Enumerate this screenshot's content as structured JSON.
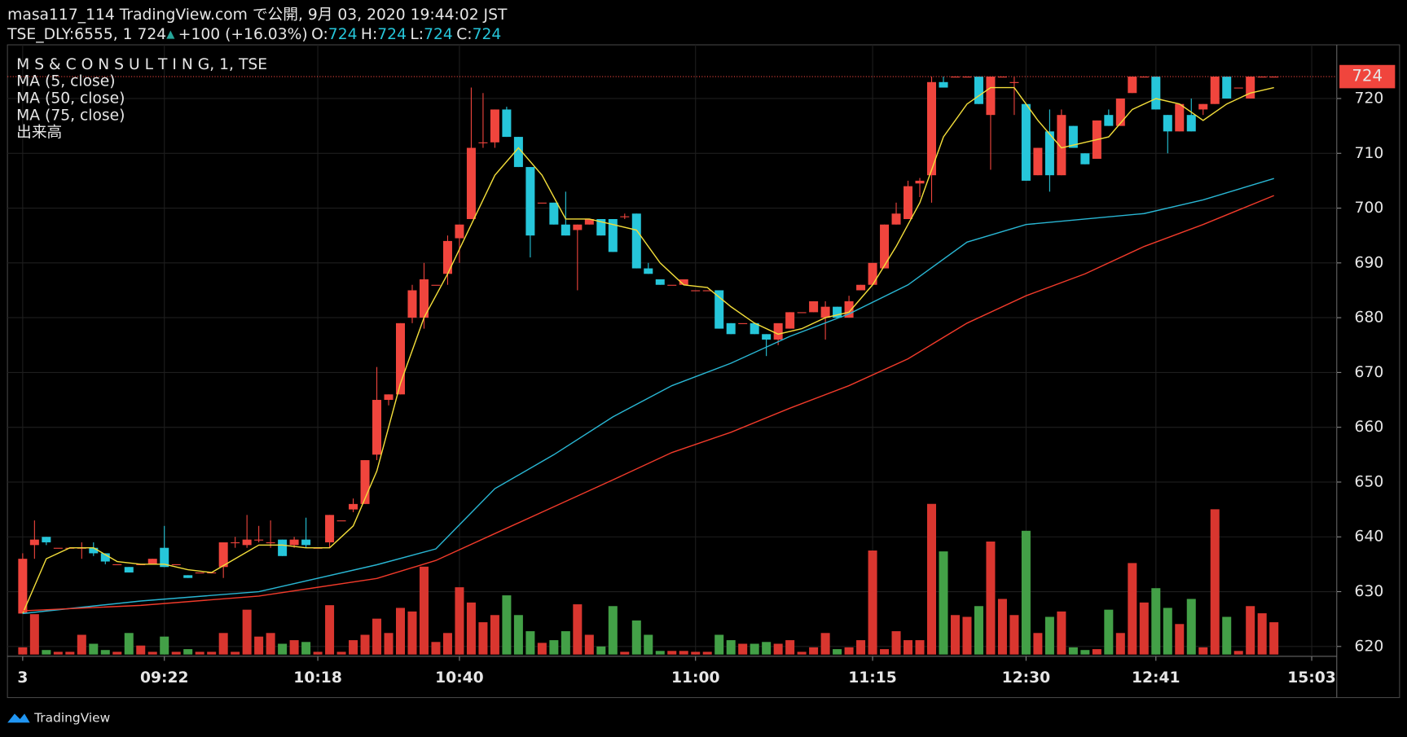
{
  "header": {
    "line1": "masa117_114 TradingView.com で公開, 9月 03, 2020 19:44:02 JST",
    "symbol": "TSE_DLY:6555, 1 724",
    "arrow": "▲",
    "change": "+100 (+16.03%)",
    "ohlc": [
      {
        "label": "O:",
        "value": "724"
      },
      {
        "label": "H:",
        "value": "724"
      },
      {
        "label": "L:",
        "value": "724"
      },
      {
        "label": "C:",
        "value": "724"
      }
    ]
  },
  "legend": [
    "M S & C O N S U L T I N G, 1, TSE",
    "MA (5, close)",
    "MA (50, close)",
    "MA (75, close)",
    "出来高"
  ],
  "footer": "TradingView",
  "chart_data": {
    "type": "candlestick",
    "categories": [
      "3",
      null,
      null,
      null,
      null,
      null,
      null,
      null,
      null,
      null,
      null,
      null,
      "09:22",
      null,
      null,
      null,
      null,
      null,
      null,
      null,
      null,
      null,
      null,
      null,
      null,
      "10:18",
      null,
      null,
      null,
      null,
      null,
      null,
      null,
      null,
      null,
      null,
      null,
      "10:40",
      null,
      null,
      null,
      null,
      null,
      null,
      null,
      null,
      null,
      null,
      null,
      null,
      null,
      null,
      null,
      null,
      null,
      null,
      null,
      "11:00",
      null,
      null,
      null,
      null,
      null,
      null,
      null,
      null,
      null,
      null,
      null,
      null,
      null,
      null,
      "11:15",
      null,
      null,
      null,
      null,
      null,
      null,
      null,
      null,
      null,
      null,
      null,
      null,
      "12:30",
      null,
      null,
      null,
      null,
      null,
      null,
      null,
      null,
      null,
      null,
      "12:41",
      null,
      null,
      null,
      null,
      null,
      null,
      null,
      null,
      null,
      null
    ],
    "extra_xticks": [
      "15:03"
    ],
    "open": [
      626,
      638.5,
      640,
      638,
      638,
      638,
      638,
      637,
      635,
      634.5,
      635,
      635,
      638,
      635,
      633,
      633.5,
      633.5,
      634.5,
      639,
      638.5,
      639.5,
      639,
      639.5,
      638.5,
      639.5,
      638,
      639,
      643,
      645,
      646,
      655,
      665,
      666,
      680,
      680,
      686,
      688,
      694.5,
      698,
      712,
      712,
      718,
      713,
      707.5,
      701,
      701,
      697,
      696,
      697,
      698,
      698,
      698.5,
      699,
      689,
      687,
      686,
      686,
      685,
      685,
      685,
      679,
      679,
      679,
      677,
      676,
      678,
      681,
      681,
      680,
      682,
      680,
      685,
      686,
      689,
      697,
      698,
      704.5,
      706,
      723,
      724,
      724,
      724,
      717,
      724,
      723,
      719,
      706,
      714,
      706,
      715,
      710,
      709,
      717,
      715,
      721,
      724,
      724,
      717,
      714,
      717,
      718,
      719,
      724,
      722,
      720,
      724,
      724
    ],
    "high": [
      637,
      643,
      640,
      638,
      638,
      639,
      639,
      637,
      635,
      634.5,
      635,
      636,
      642,
      635,
      633,
      633.5,
      633.5,
      639,
      640,
      644,
      642,
      643,
      639.5,
      640,
      643.5,
      638,
      644,
      643,
      647,
      654,
      671,
      666,
      679,
      686,
      690,
      686,
      695,
      697,
      722,
      721,
      718,
      718.5,
      713,
      707.5,
      701,
      701,
      703,
      697,
      698,
      698,
      698,
      699,
      699,
      690,
      687,
      686,
      687,
      685,
      685,
      685,
      679,
      679,
      679,
      677,
      678,
      681,
      681,
      683,
      683,
      682,
      684,
      686,
      690,
      697,
      701,
      705,
      705.5,
      724,
      724,
      724,
      724,
      724,
      724,
      724,
      724,
      719,
      711,
      718,
      718,
      715,
      710,
      716,
      718,
      720,
      724,
      724,
      724,
      717,
      719,
      720,
      719,
      724,
      724,
      722,
      724,
      724,
      724
    ],
    "low": [
      626,
      636,
      638.5,
      638,
      638,
      636,
      636.5,
      635,
      635,
      633.5,
      635,
      635,
      634.5,
      635,
      632.5,
      633.5,
      633.5,
      632.5,
      638,
      638,
      639,
      638,
      636.5,
      638,
      638,
      638,
      638,
      643,
      644.5,
      646,
      654,
      664,
      666,
      679,
      678,
      686,
      686,
      690,
      698,
      711,
      711,
      713,
      707.5,
      691,
      701,
      697,
      695,
      685,
      697,
      695,
      692,
      698,
      689,
      688,
      686,
      686,
      686,
      685,
      685,
      678,
      677,
      679,
      677,
      673,
      675,
      678,
      681,
      681,
      676,
      680,
      680,
      685,
      686,
      689,
      697,
      698,
      702,
      701,
      722,
      724,
      724,
      719,
      707,
      724,
      717,
      705,
      706,
      703,
      706,
      711,
      708,
      709,
      715,
      715,
      721,
      724,
      718,
      710,
      714,
      714,
      717,
      719,
      720,
      722,
      720,
      724,
      724
    ],
    "close": [
      636,
      639.5,
      639,
      638,
      638,
      638,
      637,
      635.5,
      635,
      633.5,
      635,
      636,
      634.5,
      635,
      632.5,
      633.5,
      633.5,
      639,
      639,
      639.5,
      639.5,
      639,
      636.5,
      639.5,
      638.5,
      638,
      644,
      643,
      646,
      654,
      665,
      666,
      679,
      685,
      687,
      686,
      694,
      697,
      711,
      712,
      718,
      713,
      707.5,
      695,
      701,
      697,
      695,
      697,
      698,
      695,
      692,
      698.5,
      689,
      688,
      686,
      686,
      687,
      685,
      685,
      678,
      677,
      679,
      677,
      676,
      679,
      681,
      681,
      683,
      682,
      680,
      683,
      686,
      690,
      697,
      699,
      704,
      705,
      723,
      722,
      724,
      724,
      719,
      724,
      724,
      723,
      705,
      711,
      706,
      717,
      711,
      708,
      716,
      715,
      720,
      724,
      724,
      718,
      714,
      719,
      714,
      719,
      724,
      720,
      722,
      724,
      724,
      724
    ],
    "volume": [
      8,
      45,
      5,
      3,
      3,
      22,
      12,
      5,
      3,
      24,
      10,
      3,
      20,
      3,
      6,
      3,
      3,
      24,
      3,
      50,
      20,
      24,
      12,
      16,
      14,
      3,
      55,
      3,
      16,
      22,
      40,
      24,
      52,
      48,
      98,
      14,
      24,
      75,
      58,
      36,
      44,
      66,
      44,
      26,
      13,
      16,
      26,
      56,
      22,
      9,
      54,
      3,
      38,
      22,
      4,
      4,
      4,
      3,
      3,
      22,
      16,
      12,
      12,
      14,
      12,
      16,
      3,
      8,
      24,
      6,
      8,
      16,
      116,
      6,
      26,
      16,
      16,
      168,
      115,
      44,
      42,
      54,
      126,
      62,
      44,
      138,
      24,
      42,
      48,
      8,
      5,
      6,
      50,
      24,
      102,
      58,
      74,
      52,
      34,
      62,
      8,
      162,
      42,
      4,
      54,
      46,
      36
    ],
    "up_color": "#f0453d",
    "down_color": "#26c6da",
    "volume_up_color": "#d9362f",
    "volume_down_color": "#43a047",
    "series": [
      {
        "name": "MA (5, close)",
        "color": "#f2dd3a",
        "x": [
          0,
          2,
          4,
          6,
          8,
          10,
          12,
          14,
          16,
          18,
          20,
          22,
          24,
          26,
          28,
          30,
          32,
          34,
          36,
          38,
          40,
          42,
          44,
          46,
          48,
          50,
          52,
          54,
          56,
          58,
          60,
          62,
          64,
          66,
          68,
          70,
          72,
          74,
          76,
          78,
          80,
          82,
          84,
          86,
          88,
          90,
          92,
          94,
          96,
          98,
          100,
          102,
          104,
          106
        ],
        "values": [
          626,
          636,
          638,
          638,
          635.5,
          635,
          635,
          634,
          633.5,
          636,
          638.5,
          638.5,
          638,
          638,
          642,
          652,
          668,
          680,
          688,
          697,
          706,
          711,
          706,
          698,
          698,
          697,
          696,
          690,
          686,
          685.5,
          682,
          679,
          677,
          678,
          680,
          681,
          686,
          693,
          701,
          713,
          719,
          722,
          722,
          716,
          711,
          712,
          713,
          718,
          720,
          719,
          716,
          719,
          721,
          722
        ]
      },
      {
        "name": "MA (50, close)",
        "color": "#29b6d3",
        "x": [
          0,
          10,
          20,
          30,
          35,
          40,
          45,
          50,
          55,
          60,
          65,
          70,
          75,
          80,
          85,
          90,
          95,
          100,
          106
        ],
        "values": [
          626,
          628.3,
          630,
          634.9,
          637.8,
          648.8,
          655,
          661.9,
          667.6,
          671.7,
          676.6,
          680.7,
          686,
          693.8,
          697,
          698,
          699,
          701.5,
          705.4
        ]
      },
      {
        "name": "MA (75, close)",
        "color": "#f03a2a",
        "x": [
          0,
          10,
          20,
          30,
          35,
          40,
          45,
          50,
          55,
          60,
          65,
          70,
          75,
          80,
          85,
          90,
          95,
          100,
          106
        ],
        "values": [
          626.5,
          627.5,
          629.2,
          632.4,
          635.7,
          640.6,
          645.5,
          650.4,
          655.4,
          659.1,
          663.5,
          667.6,
          672.5,
          679,
          684,
          688,
          693,
          697,
          702.3
        ]
      }
    ],
    "last_price": 724,
    "last_price_color": "#f0453d",
    "ylim": [
      618.2,
      729.8
    ],
    "yticks": [
      620,
      630,
      640,
      650,
      660,
      670,
      680,
      690,
      700,
      710,
      720
    ],
    "grid": true
  }
}
